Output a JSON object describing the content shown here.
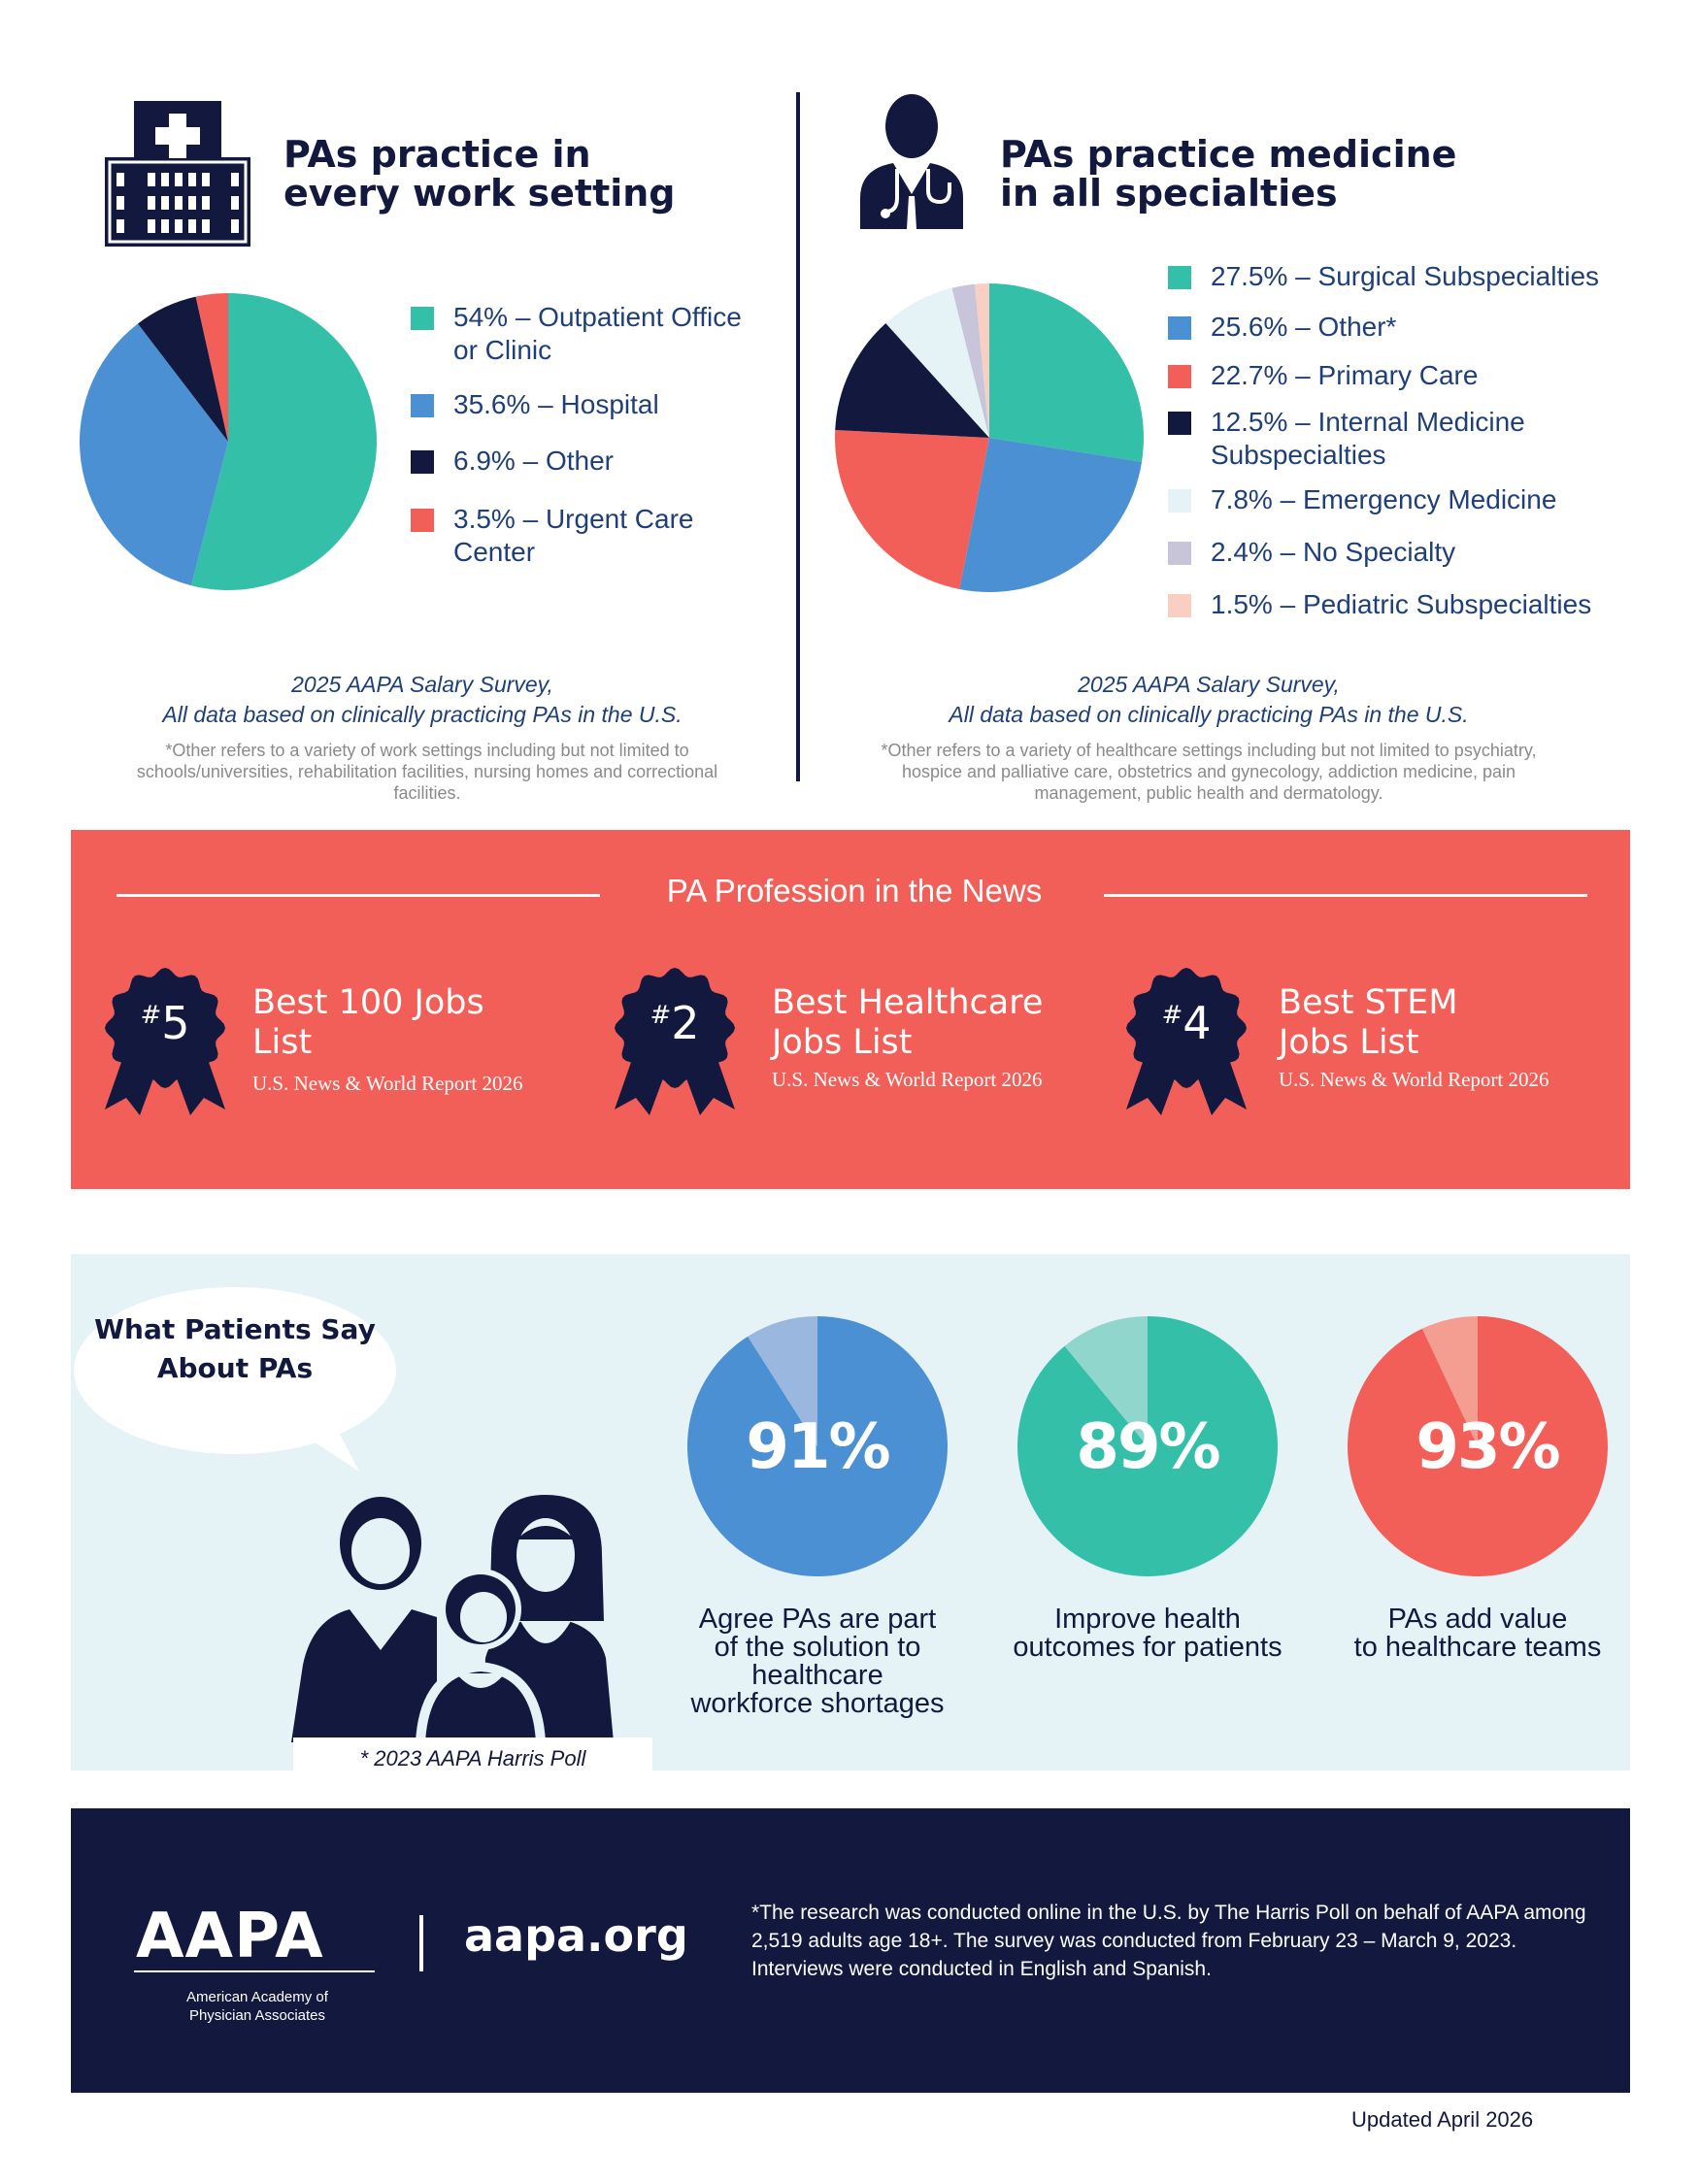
{
  "settings": {
    "heading": "PAs practice in\nevery work setting",
    "survey_note": "2025 AAPA Salary Survey,\nAll data based on clinically practicing PAs in the U.S.",
    "fine_print": "*Other refers to a variety of work settings including but not limited to schools/universities, rehabilitation facilities, nursing homes and correctional facilities."
  },
  "specialties": {
    "heading": "PAs practice medicine\nin all specialties",
    "survey_note": "2025 AAPA Salary Survey,\nAll data based on clinically practicing PAs in the U.S.",
    "fine_print": "*Other refers to a variety of healthcare settings including but not limited to psychiatry, hospice and palliative care, obstetrics and gynecology, addiction medicine, pain management, public health and dermatology."
  },
  "chart_data": [
    {
      "type": "pie",
      "title": "PAs practice in every work setting",
      "slices": [
        {
          "label": "54% – Outpatient Office\n or Clinic",
          "value": 54,
          "color": "#34bfa9"
        },
        {
          "label": "35.6% – Hospital",
          "value": 35.6,
          "color": "#4b90d3"
        },
        {
          "label": "6.9% – Other",
          "value": 6.9,
          "color": "#13183f"
        },
        {
          "label": "3.5% – Urgent Care\n          Center",
          "value": 3.5,
          "color": "#f25f58"
        }
      ]
    },
    {
      "type": "pie",
      "title": "PAs practice medicine in all specialties",
      "slices": [
        {
          "label": "27.5% – Surgical Subspecialties",
          "value": 27.5,
          "color": "#34bfa9"
        },
        {
          "label": "25.6% – Other*",
          "value": 25.6,
          "color": "#4b90d3"
        },
        {
          "label": "22.7% – Primary Care",
          "value": 22.7,
          "color": "#f25f58"
        },
        {
          "label": "12.5% – Internal Medicine\n              Subspecialties",
          "value": 12.5,
          "color": "#13183f"
        },
        {
          "label": "7.8% – Emergency Medicine",
          "value": 7.8,
          "color": "#e6f3f6"
        },
        {
          "label": "2.4% – No Specialty",
          "value": 2.4,
          "color": "#c8c4da"
        },
        {
          "label": "1.5% – Pediatric Subspecialties",
          "value": 1.5,
          "color": "#f9cfc3"
        }
      ]
    },
    {
      "type": "pie",
      "slices": [
        {
          "label": "91%",
          "value": 91,
          "color": "#4b90d3"
        },
        {
          "label": "",
          "value": 9,
          "color": "#9ab7e0"
        }
      ]
    },
    {
      "type": "pie",
      "slices": [
        {
          "label": "89%",
          "value": 89,
          "color": "#34bfa9"
        },
        {
          "label": "",
          "value": 11,
          "color": "#91d6cc"
        }
      ]
    },
    {
      "type": "pie",
      "slices": [
        {
          "label": "93%",
          "value": 93,
          "color": "#f25f58"
        },
        {
          "label": "",
          "value": 7,
          "color": "#f49e92"
        }
      ]
    }
  ],
  "news": {
    "title": "PA Profession in the News",
    "awards": [
      {
        "hash": "#",
        "rank": "5",
        "title": "Best 100 Jobs\nList",
        "source": "U.S. News & World Report 2026"
      },
      {
        "hash": "#",
        "rank": "2",
        "title": "Best Healthcare\nJobs List",
        "source": "U.S. News & World Report 2026"
      },
      {
        "hash": "#",
        "rank": "4",
        "title": "Best STEM\nJobs List",
        "source": "U.S. News & World Report 2026"
      }
    ]
  },
  "patients": {
    "bubble": "What Patients Say\nAbout PAs",
    "stats": [
      {
        "pct": "91%",
        "caption": "Agree PAs are part\nof the solution to\nhealthcare\nworkforce shortages"
      },
      {
        "pct": "89%",
        "caption": "Improve health\noutcomes for patients"
      },
      {
        "pct": "93%",
        "caption": "PAs add value\nto healthcare teams"
      }
    ],
    "poll": "* 2023 AAPA Harris Poll"
  },
  "footer": {
    "logo": "AAPA",
    "org_name": "American Academy of\nPhysician Associates",
    "site": "aapa.org",
    "footnote": "*The research was conducted online in the U.S. by The Harris Poll on behalf of AAPA among 2,519 adults age 18+. The survey was conducted from February 23 – March 9, 2023. Interviews were conducted in English and Spanish.",
    "updated": "Updated April 2026"
  }
}
